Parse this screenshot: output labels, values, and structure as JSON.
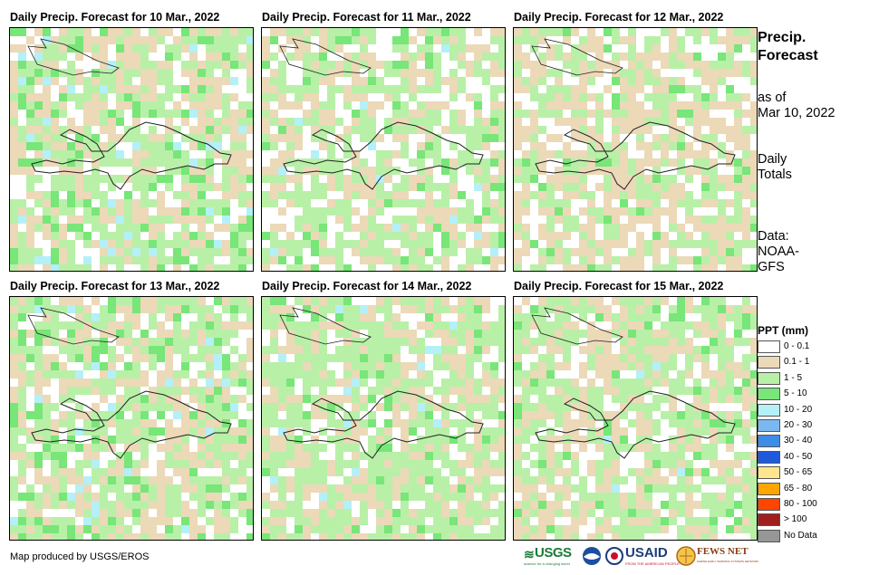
{
  "panels": [
    {
      "title": "Daily Precip. Forecast for 10 Mar., 2022"
    },
    {
      "title": "Daily Precip. Forecast for 11 Mar., 2022"
    },
    {
      "title": "Daily Precip. Forecast for 12 Mar., 2022"
    },
    {
      "title": "Daily Precip. Forecast for 13 Mar., 2022"
    },
    {
      "title": "Daily Precip. Forecast for 14 Mar., 2022"
    },
    {
      "title": "Daily Precip. Forecast for 15 Mar., 2022"
    }
  ],
  "side": {
    "title_line1": "Precip.",
    "title_line2": "Forecast",
    "asof_line1": "as of",
    "asof_line2": "Mar 10, 2022",
    "totals_line1": "Daily",
    "totals_line2": "Totals",
    "data_line1": "Data:",
    "data_line2": "NOAA-",
    "data_line3": "GFS"
  },
  "legend": {
    "title": "PPT (mm)",
    "items": [
      {
        "label": "0 - 0.1",
        "color": "#ffffff"
      },
      {
        "label": "0.1 - 1",
        "color": "#ecd9b8"
      },
      {
        "label": "1 - 5",
        "color": "#b8f0a8"
      },
      {
        "label": "5 - 10",
        "color": "#78e678"
      },
      {
        "label": "10 - 20",
        "color": "#b4f0f8"
      },
      {
        "label": "20 - 30",
        "color": "#7cb8f0"
      },
      {
        "label": "30 - 40",
        "color": "#3c8ce8"
      },
      {
        "label": "40 - 50",
        "color": "#1e5adc"
      },
      {
        "label": "50 - 65",
        "color": "#ffe68c"
      },
      {
        "label": "65 - 80",
        "color": "#ffa500"
      },
      {
        "label": "80 - 100",
        "color": "#ff4500"
      },
      {
        "label": "> 100",
        "color": "#a01e1e"
      },
      {
        "label": "No Data",
        "color": "#969696"
      }
    ]
  },
  "footer": {
    "credit": "Map produced by USGS/EROS"
  },
  "logos": {
    "usgs": "USGS",
    "usgs_tagline": "science for a changing world",
    "usaid": "USAID",
    "usaid_tagline": "FROM THE AMERICAN PEOPLE",
    "fewsnet": "FEWS NET",
    "fewsnet_tagline": "FAMINE EARLY WARNING SYSTEMS NETWORK"
  }
}
